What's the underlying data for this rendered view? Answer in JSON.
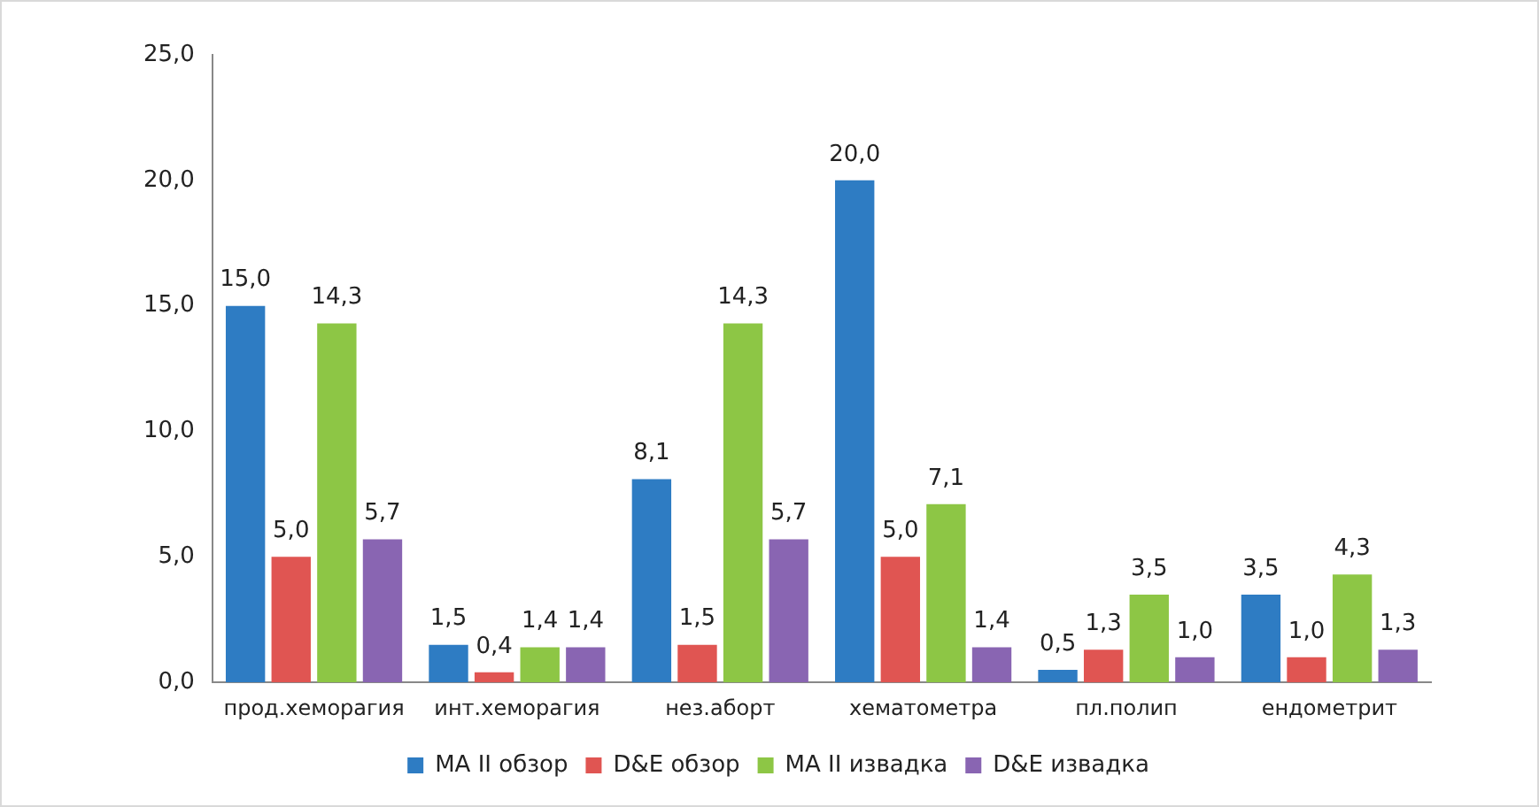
{
  "chart_data": {
    "type": "bar",
    "categories": [
      "прод.хеморагия",
      "инт.хеморагия",
      "нез.аборт",
      "хематометра",
      "пл.полип",
      "ендометрит"
    ],
    "series": [
      {
        "name": "MA II обзор",
        "color": "#2e7cc3",
        "values": [
          15.0,
          1.5,
          8.1,
          20.0,
          0.5,
          3.5
        ],
        "value_labels": [
          "15,0",
          "1,5",
          "8,1",
          "20,0",
          "0,5",
          "3,5"
        ]
      },
      {
        "name": "D&E обзор",
        "color": "#e05552",
        "values": [
          5.0,
          0.4,
          1.5,
          5.0,
          1.3,
          1.0
        ],
        "value_labels": [
          "5,0",
          "0,4",
          "1,5",
          "5,0",
          "1,3",
          "1,0"
        ]
      },
      {
        "name": "MA II извадка",
        "color": "#8dc645",
        "values": [
          14.3,
          1.4,
          14.3,
          7.1,
          3.5,
          4.3
        ],
        "value_labels": [
          "14,3",
          "1,4",
          "14,3",
          "7,1",
          "3,5",
          "4,3"
        ]
      },
      {
        "name": "D&E извадка",
        "color": "#8965b2",
        "values": [
          5.7,
          1.4,
          5.7,
          1.4,
          1.0,
          1.3
        ],
        "value_labels": [
          "5,7",
          "1,4",
          "5,7",
          "1,4",
          "1,0",
          "1,3"
        ]
      }
    ],
    "ylim": [
      0,
      25
    ],
    "yticks": [
      {
        "value": 0,
        "label": "0,0"
      },
      {
        "value": 5,
        "label": "5,0"
      },
      {
        "value": 10,
        "label": "10,0"
      },
      {
        "value": 15,
        "label": "15,0"
      },
      {
        "value": 20,
        "label": "20,0"
      },
      {
        "value": 25,
        "label": "25,0"
      }
    ],
    "grid": false,
    "legend": "bottom"
  }
}
